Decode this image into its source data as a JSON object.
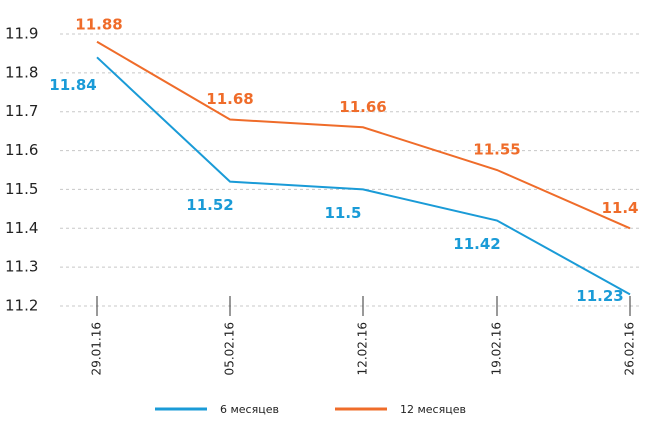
{
  "chart_data": {
    "type": "line",
    "categories": [
      "29.01.16",
      "05.02.16",
      "12.02.16",
      "19.02.16",
      "26.02.16"
    ],
    "series": [
      {
        "name": "6 месяцев",
        "color": "#1a9bd7",
        "values": [
          11.84,
          11.52,
          11.5,
          11.42,
          11.23
        ]
      },
      {
        "name": "12 месяцев",
        "color": "#ef6c2a",
        "values": [
          11.88,
          11.68,
          11.66,
          11.55,
          11.4
        ]
      }
    ],
    "ylim": [
      11.2,
      11.9
    ],
    "yticks": [
      11.2,
      11.3,
      11.4,
      11.5,
      11.6,
      11.7,
      11.8,
      11.9
    ],
    "grid": true,
    "legend": "bottom"
  }
}
